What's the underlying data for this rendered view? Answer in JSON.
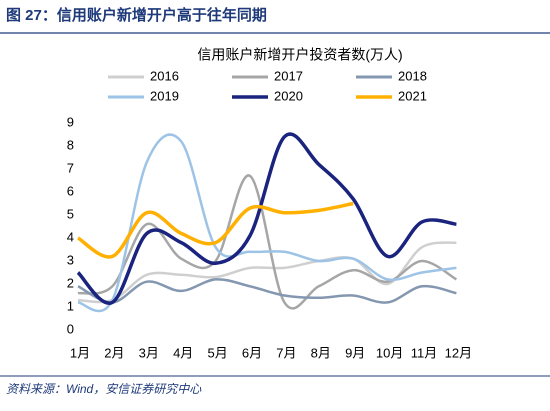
{
  "header": "图 27：信用账户新增开户高于往年同期",
  "source": "资料来源：Wind，安信证券研究中心",
  "chart_data": {
    "type": "line",
    "title": "信用账户新增开户投资者数(万人)",
    "categories": [
      "1月",
      "2月",
      "3月",
      "4月",
      "5月",
      "6月",
      "7月",
      "8月",
      "9月",
      "10月",
      "11月",
      "12月"
    ],
    "ylim": [
      0,
      9
    ],
    "yticks": [
      0,
      1,
      2,
      3,
      4,
      5,
      6,
      7,
      8,
      9
    ],
    "grid": false,
    "smooth": true,
    "series": [
      {
        "name": "2016",
        "color": "#cfcfcf",
        "values": [
          1.3,
          1.3,
          2.4,
          2.4,
          2.3,
          2.7,
          2.7,
          3.0,
          3.1,
          2.0,
          3.6,
          3.8
        ]
      },
      {
        "name": "2017",
        "color": "#a6a6a6",
        "values": [
          1.6,
          1.9,
          4.6,
          3.1,
          3.0,
          6.7,
          1.2,
          1.9,
          2.6,
          2.1,
          3.0,
          2.2
        ]
      },
      {
        "name": "2018",
        "color": "#8497b0",
        "values": [
          1.9,
          1.2,
          2.1,
          1.7,
          2.2,
          1.9,
          1.5,
          1.4,
          1.5,
          1.2,
          1.9,
          1.6
        ]
      },
      {
        "name": "2019",
        "color": "#9dc3e6",
        "values": [
          1.2,
          1.3,
          7.3,
          8.2,
          3.6,
          3.4,
          3.4,
          3.0,
          3.1,
          2.2,
          2.5,
          2.7
        ]
      },
      {
        "name": "2020",
        "color": "#1a237e",
        "values": [
          2.5,
          1.2,
          4.2,
          3.8,
          2.9,
          4.1,
          8.4,
          7.2,
          5.7,
          3.2,
          4.7,
          4.6
        ]
      },
      {
        "name": "2021",
        "color": "#ffb000",
        "values": [
          4.0,
          3.2,
          5.1,
          4.2,
          3.8,
          5.3,
          5.1,
          5.2,
          5.5,
          null,
          null,
          null
        ]
      }
    ]
  }
}
